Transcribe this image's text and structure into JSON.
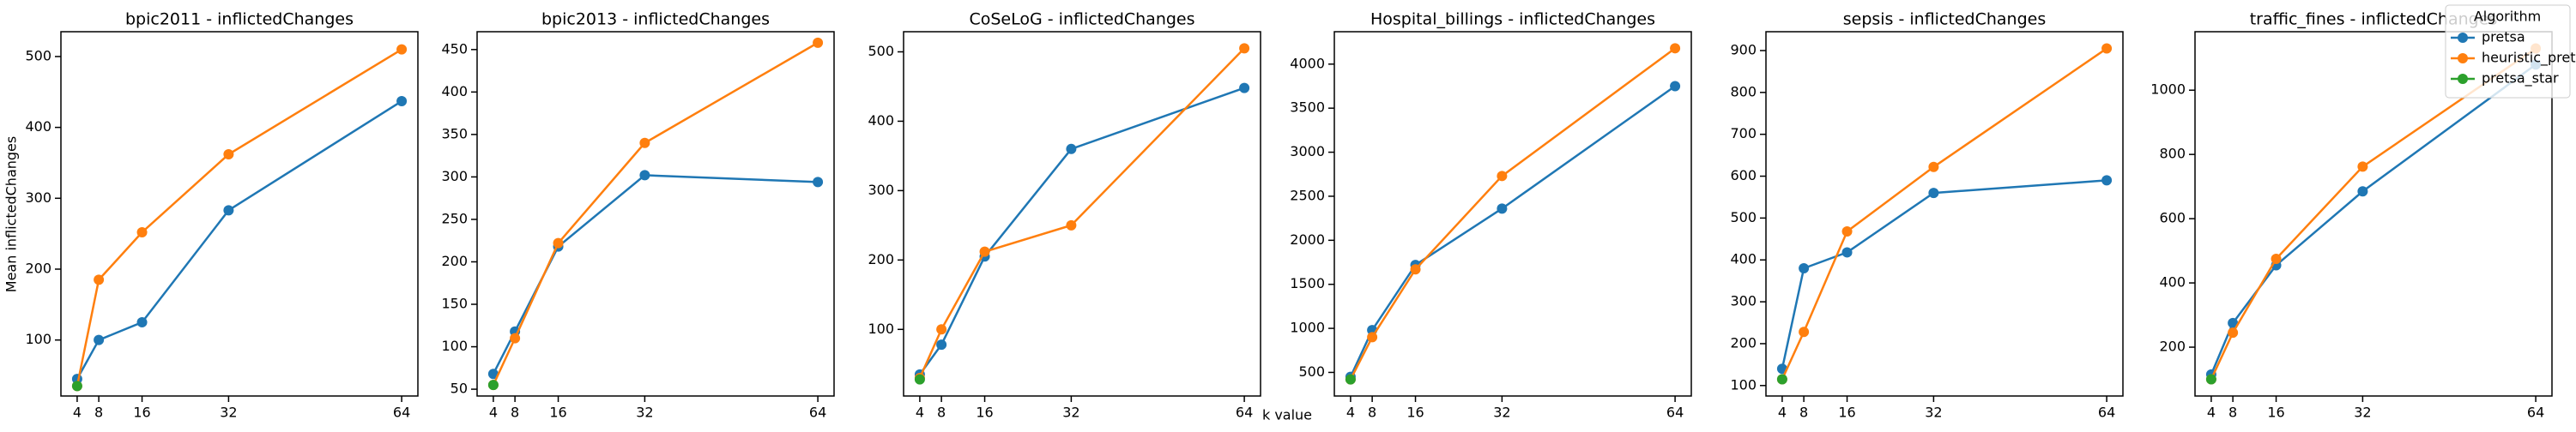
{
  "xlabel": "k value",
  "ylabel": "Mean inflictedChanges",
  "legend_title": "Algorithm",
  "chart_data": [
    {
      "type": "line",
      "title": "bpic2011 - inflictedChanges",
      "x": [
        4,
        8,
        16,
        32,
        64
      ],
      "xlim": [
        1,
        67
      ],
      "xticks": [
        4,
        8,
        16,
        32,
        64
      ],
      "ylim": [
        21,
        535
      ],
      "yticks": [
        100,
        200,
        300,
        400,
        500
      ],
      "series": [
        {
          "name": "pretsa",
          "color": "#1f77b4",
          "values": [
            45,
            100,
            125,
            283,
            437
          ]
        },
        {
          "name": "heuristic_pretsa",
          "color": "#ff7f0e",
          "values": [
            35,
            185,
            252,
            362,
            510
          ]
        },
        {
          "name": "pretsa_star",
          "color": "#2ca02c",
          "values": [
            35,
            null,
            null,
            null,
            null
          ]
        }
      ]
    },
    {
      "type": "line",
      "title": "bpic2013 - inflictedChanges",
      "x": [
        4,
        8,
        16,
        32,
        64
      ],
      "xlim": [
        1,
        67
      ],
      "xticks": [
        4,
        8,
        16,
        32,
        64
      ],
      "ylim": [
        42,
        471
      ],
      "yticks": [
        50,
        100,
        150,
        200,
        250,
        300,
        350,
        400,
        450
      ],
      "series": [
        {
          "name": "pretsa",
          "color": "#1f77b4",
          "values": [
            68,
            118,
            218,
            302,
            294
          ]
        },
        {
          "name": "heuristic_pretsa",
          "color": "#ff7f0e",
          "values": [
            55,
            110,
            222,
            340,
            458
          ]
        },
        {
          "name": "pretsa_star",
          "color": "#2ca02c",
          "values": [
            55,
            null,
            null,
            null,
            null
          ]
        }
      ]
    },
    {
      "type": "line",
      "title": "CoSeLoG - inflictedChanges",
      "x": [
        4,
        8,
        16,
        32,
        64
      ],
      "xlim": [
        1,
        67
      ],
      "xticks": [
        4,
        8,
        16,
        32,
        64
      ],
      "ylim": [
        4,
        529
      ],
      "yticks": [
        100,
        200,
        300,
        400,
        500
      ],
      "series": [
        {
          "name": "pretsa",
          "color": "#1f77b4",
          "values": [
            35,
            78,
            205,
            360,
            448
          ]
        },
        {
          "name": "heuristic_pretsa",
          "color": "#ff7f0e",
          "values": [
            30,
            100,
            212,
            250,
            505
          ]
        },
        {
          "name": "pretsa_star",
          "color": "#2ca02c",
          "values": [
            28,
            null,
            null,
            null,
            null
          ]
        }
      ]
    },
    {
      "type": "line",
      "title": "Hospital_billings - inflictedChanges",
      "x": [
        4,
        8,
        16,
        32,
        64
      ],
      "xlim": [
        1,
        67
      ],
      "xticks": [
        4,
        8,
        16,
        32,
        64
      ],
      "ylim": [
        232,
        4368
      ],
      "yticks": [
        500,
        1000,
        1500,
        2000,
        2500,
        3000,
        3500,
        4000
      ],
      "series": [
        {
          "name": "pretsa",
          "color": "#1f77b4",
          "values": [
            450,
            980,
            1720,
            2360,
            3750
          ]
        },
        {
          "name": "heuristic_pretsa",
          "color": "#ff7f0e",
          "values": [
            420,
            900,
            1670,
            2730,
            4180
          ]
        },
        {
          "name": "pretsa_star",
          "color": "#2ca02c",
          "values": [
            420,
            null,
            null,
            null,
            null
          ]
        }
      ]
    },
    {
      "type": "line",
      "title": "sepsis - inflictedChanges",
      "x": [
        4,
        8,
        16,
        32,
        64
      ],
      "xlim": [
        1,
        67
      ],
      "xticks": [
        4,
        8,
        16,
        32,
        64
      ],
      "ylim": [
        75,
        945
      ],
      "yticks": [
        100,
        200,
        300,
        400,
        500,
        600,
        700,
        800,
        900
      ],
      "series": [
        {
          "name": "pretsa",
          "color": "#1f77b4",
          "values": [
            140,
            380,
            418,
            560,
            590
          ]
        },
        {
          "name": "heuristic_pretsa",
          "color": "#ff7f0e",
          "values": [
            115,
            228,
            468,
            622,
            905
          ]
        },
        {
          "name": "pretsa_star",
          "color": "#2ca02c",
          "values": [
            115,
            null,
            null,
            null,
            null
          ]
        }
      ]
    },
    {
      "type": "line",
      "title": "traffic_fines - inflictedChanges",
      "x": [
        4,
        8,
        16,
        32,
        64
      ],
      "xlim": [
        1,
        67
      ],
      "xticks": [
        4,
        8,
        16,
        32,
        64
      ],
      "ylim": [
        48,
        1182
      ],
      "yticks": [
        200,
        400,
        600,
        800,
        1000
      ],
      "series": [
        {
          "name": "pretsa",
          "color": "#1f77b4",
          "values": [
            115,
            275,
            455,
            685,
            1080
          ]
        },
        {
          "name": "heuristic_pretsa",
          "color": "#ff7f0e",
          "values": [
            100,
            245,
            475,
            762,
            1130
          ]
        },
        {
          "name": "pretsa_star",
          "color": "#2ca02c",
          "values": [
            100,
            null,
            null,
            null,
            null
          ]
        }
      ]
    }
  ]
}
